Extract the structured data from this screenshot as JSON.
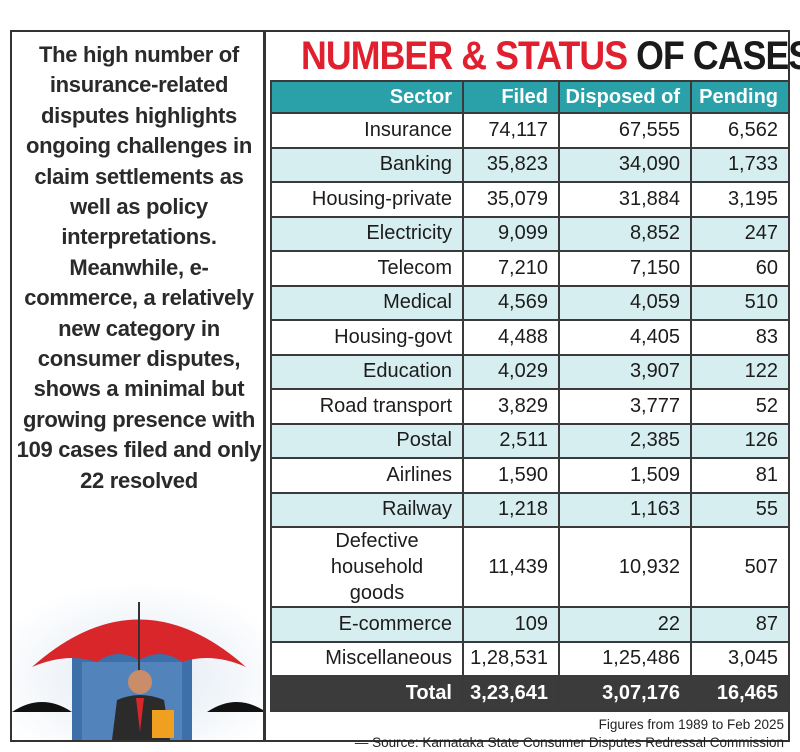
{
  "blurb": "The high number of insurance-related disputes highlights ongoing challenges in claim settlements as well as policy interpretations. Meanwhile, e-commerce, a relatively new category in consumer disputes, shows a minimal but growing presence with 109 cases filed and only 22 resolved",
  "title": {
    "part1": "NUMBER & STATUS",
    "part2": "OF CASES"
  },
  "colors": {
    "title_red": "#e0202e",
    "header_teal": "#2aa0a8",
    "row_alt": "#d6eef0",
    "total_row": "#3b3b3b"
  },
  "table": {
    "headers": [
      "Sector",
      "Filed",
      "Disposed of",
      "Pending"
    ],
    "rows": [
      [
        "Insurance",
        "74,117",
        "67,555",
        "6,562"
      ],
      [
        "Banking",
        "35,823",
        "34,090",
        "1,733"
      ],
      [
        "Housing-private",
        "35,079",
        "31,884",
        "3,195"
      ],
      [
        "Electricity",
        "9,099",
        "8,852",
        "247"
      ],
      [
        "Telecom",
        "7,210",
        "7,150",
        "60"
      ],
      [
        "Medical",
        "4,569",
        "4,059",
        "510"
      ],
      [
        "Housing-govt",
        "4,488",
        "4,405",
        "83"
      ],
      [
        "Education",
        "4,029",
        "3,907",
        "122"
      ],
      [
        "Road transport",
        "3,829",
        "3,777",
        "52"
      ],
      [
        "Postal",
        "2,511",
        "2,385",
        "126"
      ],
      [
        "Airlines",
        "1,590",
        "1,509",
        "81"
      ],
      [
        "Railway",
        "1,218",
        "1,163",
        "55"
      ],
      [
        "Defective household goods",
        "11,439",
        "10,932",
        "507"
      ],
      [
        "E-commerce",
        "109",
        "22",
        "87"
      ],
      [
        "Miscellaneous",
        "1,28,531",
        "1,25,486",
        "3,045"
      ]
    ],
    "total": [
      "Total",
      "3,23,641",
      "3,07,176",
      "16,465"
    ]
  },
  "footer": {
    "note": "Figures from 1989 to Feb 2025",
    "source": "— Source: Karnataka State Consumer Disputes Redressal Commission"
  },
  "illustration": "umbrella-businessman"
}
